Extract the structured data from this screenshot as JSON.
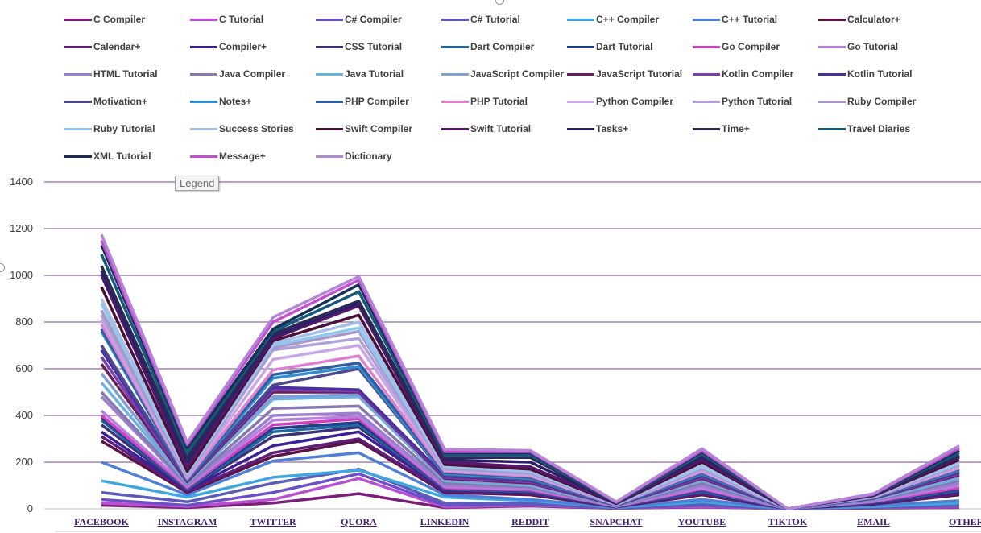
{
  "tooltip": {
    "label": "Legend"
  },
  "chart_data": {
    "type": "line",
    "title": "",
    "xlabel": "",
    "ylabel": "",
    "ylim": [
      0,
      1400
    ],
    "yticks": [
      "0",
      "200",
      "400",
      "600",
      "800",
      "1000",
      "1200",
      "1400"
    ],
    "grid": true,
    "legend_position": "top",
    "categories": [
      "FACEBOOK",
      "INSTAGRAM",
      "TWITTER",
      "QUORA",
      "LINKEDIN",
      "REDDIT",
      "SNAPCHAT",
      "YOUTUBE",
      "TIKTOK",
      "EMAIL",
      "OTHER"
    ],
    "series": [
      {
        "name": "C Compiler",
        "color": "#7b1f7a",
        "values": [
          15,
          5,
          25,
          65,
          5,
          12,
          2,
          8,
          0,
          3,
          5
        ]
      },
      {
        "name": "C Tutorial",
        "color": "#b84fd1",
        "values": [
          25,
          10,
          40,
          130,
          8,
          15,
          3,
          10,
          0,
          5,
          8
        ]
      },
      {
        "name": "C# Compiler",
        "color": "#6a4fc9",
        "values": [
          40,
          15,
          70,
          150,
          15,
          20,
          3,
          15,
          0,
          6,
          12
        ]
      },
      {
        "name": "C# Tutorial",
        "color": "#5b5cb8",
        "values": [
          70,
          30,
          110,
          170,
          25,
          25,
          4,
          20,
          0,
          8,
          15
        ]
      },
      {
        "name": "C++ Compiler",
        "color": "#3fa7e0",
        "values": [
          120,
          50,
          135,
          165,
          50,
          35,
          5,
          30,
          0,
          10,
          25
        ]
      },
      {
        "name": "C++ Tutorial",
        "color": "#4f7fd6",
        "values": [
          200,
          60,
          205,
          240,
          60,
          40,
          6,
          40,
          0,
          15,
          35
        ]
      },
      {
        "name": "Calculator+",
        "color": "#5a1245",
        "values": [
          290,
          70,
          225,
          290,
          70,
          60,
          8,
          60,
          0,
          20,
          60
        ]
      },
      {
        "name": "Calendar+",
        "color": "#5e1f7a",
        "values": [
          310,
          75,
          240,
          300,
          75,
          65,
          8,
          65,
          0,
          22,
          65
        ]
      },
      {
        "name": "Compiler+",
        "color": "#3b1f9a",
        "values": [
          330,
          80,
          270,
          330,
          80,
          70,
          9,
          70,
          0,
          24,
          70
        ]
      },
      {
        "name": "CSS Tutorial",
        "color": "#3d2f7a",
        "values": [
          360,
          82,
          310,
          350,
          82,
          72,
          9,
          72,
          0,
          25,
          75
        ]
      },
      {
        "name": "Dart Compiler",
        "color": "#1f6aa0",
        "values": [
          380,
          85,
          330,
          360,
          85,
          75,
          10,
          75,
          0,
          27,
          80
        ]
      },
      {
        "name": "Dart Tutorial",
        "color": "#1f3f8a",
        "values": [
          390,
          88,
          345,
          370,
          88,
          78,
          10,
          80,
          0,
          28,
          85
        ]
      },
      {
        "name": "Go Compiler",
        "color": "#d03fc0",
        "values": [
          400,
          90,
          360,
          385,
          90,
          80,
          10,
          85,
          0,
          30,
          90
        ]
      },
      {
        "name": "Go Tutorial",
        "color": "#b77fe0",
        "values": [
          420,
          95,
          380,
          395,
          95,
          85,
          11,
          90,
          0,
          32,
          100
        ]
      },
      {
        "name": "HTML Tutorial",
        "color": "#9a7fd0",
        "values": [
          480,
          100,
          400,
          410,
          100,
          90,
          12,
          100,
          0,
          35,
          110
        ]
      },
      {
        "name": "Java Compiler",
        "color": "#8878b0",
        "values": [
          500,
          105,
          430,
          440,
          110,
          95,
          12,
          110,
          0,
          38,
          120
        ]
      },
      {
        "name": "Java Tutorial",
        "color": "#6ab2e0",
        "values": [
          540,
          110,
          470,
          480,
          120,
          100,
          13,
          120,
          0,
          40,
          130
        ]
      },
      {
        "name": "JavaScript Compiler",
        "color": "#7f9fd6",
        "values": [
          580,
          112,
          480,
          490,
          125,
          105,
          14,
          125,
          0,
          42,
          140
        ]
      },
      {
        "name": "JavaScript Tutorial",
        "color": "#6a1f5a",
        "values": [
          620,
          115,
          500,
          500,
          130,
          110,
          15,
          130,
          0,
          44,
          145
        ]
      },
      {
        "name": "Kotlin Compiler",
        "color": "#7a3fb0",
        "values": [
          650,
          118,
          510,
          505,
          135,
          115,
          15,
          135,
          0,
          45,
          150
        ]
      },
      {
        "name": "Kotlin Tutorial",
        "color": "#4a2fa0",
        "values": [
          680,
          120,
          520,
          510,
          140,
          120,
          16,
          140,
          0,
          46,
          155
        ]
      },
      {
        "name": "Motivation+",
        "color": "#4f4a90",
        "values": [
          700,
          122,
          530,
          600,
          145,
          125,
          16,
          145,
          0,
          47,
          160
        ]
      },
      {
        "name": "Notes+",
        "color": "#2f8fd0",
        "values": [
          760,
          125,
          560,
          610,
          150,
          130,
          17,
          150,
          0,
          48,
          165
        ]
      },
      {
        "name": "PHP Compiler",
        "color": "#2f5fa0",
        "values": [
          770,
          128,
          575,
          625,
          155,
          135,
          18,
          155,
          0,
          49,
          170
        ]
      },
      {
        "name": "PHP Tutorial",
        "color": "#e07fd0",
        "values": [
          790,
          130,
          595,
          655,
          160,
          140,
          18,
          160,
          0,
          50,
          175
        ]
      },
      {
        "name": "Python Compiler",
        "color": "#caa5e8",
        "values": [
          810,
          135,
          640,
          700,
          165,
          145,
          19,
          165,
          0,
          51,
          180
        ]
      },
      {
        "name": "Python Tutorial",
        "color": "#b0a0dc",
        "values": [
          830,
          140,
          680,
          730,
          170,
          150,
          20,
          170,
          0,
          52,
          185
        ]
      },
      {
        "name": "Ruby Compiler",
        "color": "#a898c8",
        "values": [
          850,
          145,
          690,
          760,
          175,
          155,
          20,
          175,
          0,
          53,
          190
        ]
      },
      {
        "name": "Ruby Tutorial",
        "color": "#8ec8f0",
        "values": [
          880,
          150,
          700,
          775,
          180,
          160,
          21,
          180,
          0,
          54,
          195
        ]
      },
      {
        "name": "Success Stories",
        "color": "#a5bfe8",
        "values": [
          900,
          155,
          710,
          800,
          185,
          165,
          22,
          185,
          0,
          55,
          200
        ]
      },
      {
        "name": "Swift Compiler",
        "color": "#4a0f3a",
        "values": [
          950,
          160,
          720,
          830,
          190,
          170,
          22,
          200,
          0,
          56,
          210
        ]
      },
      {
        "name": "Swift Tutorial",
        "color": "#55186a",
        "values": [
          1000,
          180,
          730,
          870,
          200,
          180,
          23,
          210,
          0,
          57,
          220
        ]
      },
      {
        "name": "Tasks+",
        "color": "#2f1f6a",
        "values": [
          1020,
          200,
          740,
          880,
          210,
          200,
          24,
          220,
          0,
          58,
          225
        ]
      },
      {
        "name": "Time+",
        "color": "#2a2a55",
        "values": [
          1040,
          220,
          750,
          890,
          220,
          220,
          25,
          230,
          0,
          59,
          230
        ]
      },
      {
        "name": "Travel Diaries",
        "color": "#155a7a",
        "values": [
          1090,
          240,
          760,
          930,
          230,
          230,
          26,
          235,
          0,
          60,
          240
        ]
      },
      {
        "name": "XML Tutorial",
        "color": "#17305a",
        "values": [
          1130,
          260,
          770,
          960,
          240,
          240,
          27,
          245,
          0,
          61,
          250
        ]
      },
      {
        "name": "Message+",
        "color": "#c050d0",
        "values": [
          1150,
          275,
          800,
          980,
          245,
          245,
          28,
          250,
          0,
          62,
          260
        ]
      },
      {
        "name": "Dictionary",
        "color": "#b585d8",
        "values": [
          1175,
          285,
          820,
          995,
          255,
          250,
          30,
          258,
          0,
          65,
          270
        ]
      }
    ]
  }
}
